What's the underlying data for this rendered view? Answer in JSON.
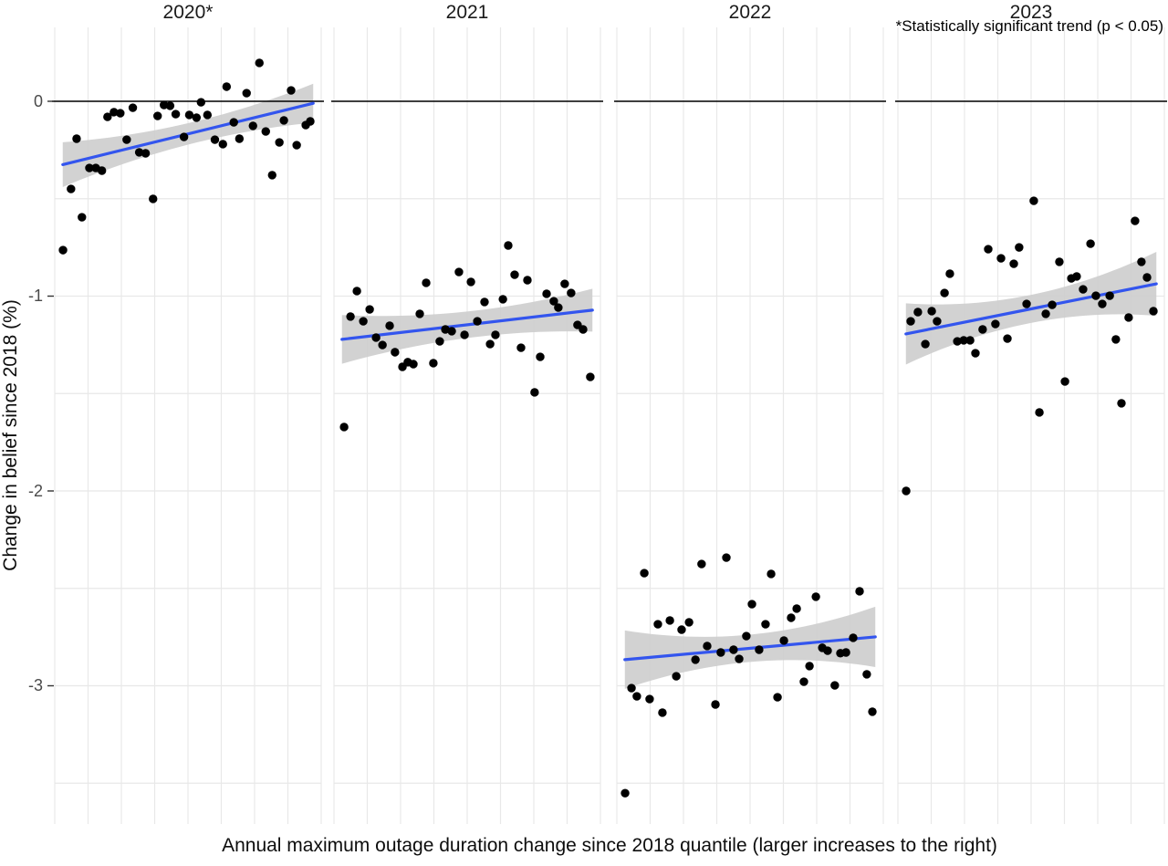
{
  "figure": {
    "background": "#FFFFFF"
  },
  "chart_data": {
    "type": "scatter",
    "xlabel": "Annual maximum outage duration change since 2018 quantile (larger increases to the right)",
    "ylabel": "Change in belief since 2018 (%)",
    "annotation": "*Statistically significant trend (p < 0.05)",
    "xlim": [
      0,
      1
    ],
    "ylim": [
      -3.71,
      0.38
    ],
    "y_ticks": [
      0,
      -1,
      -2,
      -3
    ],
    "y_tick_labels": [
      "0",
      "-1",
      "-2",
      "-3"
    ],
    "y_minor_step": 0.5,
    "grid": true,
    "zero_line": true,
    "legend": "none",
    "colors": {
      "point": "#000000",
      "trend": "#3355EE",
      "band": "#CDCDCD",
      "grid": "#E8E8E8",
      "zero_line": "#000000",
      "tick_mark": "#333333",
      "tick_text": "#4A4A4A"
    },
    "facets": [
      {
        "title": "2020*",
        "significant": true,
        "trend": {
          "x": [
            0.03,
            0.97
          ],
          "y": [
            -0.325,
            -0.01
          ]
        },
        "ci_halfwidth": {
          "left": 0.115,
          "mid": 0.055,
          "right": 0.1
        },
        "points": [
          [
            0.031,
            -0.764
          ],
          [
            0.061,
            -0.45
          ],
          [
            0.082,
            -0.192
          ],
          [
            0.102,
            -0.595
          ],
          [
            0.13,
            -0.342
          ],
          [
            0.154,
            -0.342
          ],
          [
            0.177,
            -0.356
          ],
          [
            0.198,
            -0.08
          ],
          [
            0.222,
            -0.056
          ],
          [
            0.246,
            -0.061
          ],
          [
            0.27,
            -0.197
          ],
          [
            0.293,
            -0.033
          ],
          [
            0.317,
            -0.262
          ],
          [
            0.341,
            -0.267
          ],
          [
            0.369,
            -0.501
          ],
          [
            0.386,
            -0.075
          ],
          [
            0.41,
            -0.019
          ],
          [
            0.433,
            -0.023
          ],
          [
            0.454,
            -0.066
          ],
          [
            0.485,
            -0.183
          ],
          [
            0.505,
            -0.07
          ],
          [
            0.532,
            -0.084
          ],
          [
            0.549,
            -0.005
          ],
          [
            0.573,
            -0.07
          ],
          [
            0.601,
            -0.197
          ],
          [
            0.631,
            -0.22
          ],
          [
            0.645,
            0.075
          ],
          [
            0.672,
            -0.108
          ],
          [
            0.693,
            -0.192
          ],
          [
            0.72,
            0.042
          ],
          [
            0.744,
            -0.126
          ],
          [
            0.768,
            0.197
          ],
          [
            0.792,
            -0.155
          ],
          [
            0.816,
            -0.379
          ],
          [
            0.843,
            -0.211
          ],
          [
            0.86,
            -0.098
          ],
          [
            0.887,
            0.056
          ],
          [
            0.908,
            -0.225
          ],
          [
            0.942,
            -0.122
          ],
          [
            0.959,
            -0.103
          ]
        ]
      },
      {
        "title": "2021",
        "significant": false,
        "trend": {
          "x": [
            0.03,
            0.97
          ],
          "y": [
            -1.222,
            -1.072
          ]
        },
        "ci_halfwidth": {
          "left": 0.125,
          "mid": 0.068,
          "right": 0.11
        },
        "points": [
          [
            0.038,
            -1.672
          ],
          [
            0.062,
            -1.105
          ],
          [
            0.086,
            -0.974
          ],
          [
            0.11,
            -1.129
          ],
          [
            0.134,
            -1.068
          ],
          [
            0.158,
            -1.213
          ],
          [
            0.182,
            -1.251
          ],
          [
            0.209,
            -1.152
          ],
          [
            0.229,
            -1.288
          ],
          [
            0.257,
            -1.363
          ],
          [
            0.277,
            -1.339
          ],
          [
            0.298,
            -1.349
          ],
          [
            0.322,
            -1.091
          ],
          [
            0.346,
            -0.932
          ],
          [
            0.373,
            -1.344
          ],
          [
            0.397,
            -1.232
          ],
          [
            0.418,
            -1.171
          ],
          [
            0.442,
            -1.18
          ],
          [
            0.469,
            -0.876
          ],
          [
            0.49,
            -1.199
          ],
          [
            0.514,
            -0.927
          ],
          [
            0.538,
            -1.129
          ],
          [
            0.565,
            -1.03
          ],
          [
            0.586,
            -1.246
          ],
          [
            0.606,
            -1.199
          ],
          [
            0.634,
            -1.016
          ],
          [
            0.654,
            -0.74
          ],
          [
            0.678,
            -0.89
          ],
          [
            0.702,
            -1.265
          ],
          [
            0.726,
            -0.918
          ],
          [
            0.753,
            -1.494
          ],
          [
            0.774,
            -1.312
          ],
          [
            0.798,
            -0.988
          ],
          [
            0.825,
            -1.026
          ],
          [
            0.842,
            -1.059
          ],
          [
            0.866,
            -0.937
          ],
          [
            0.89,
            -0.984
          ],
          [
            0.914,
            -1.148
          ],
          [
            0.935,
            -1.171
          ],
          [
            0.962,
            -1.415
          ]
        ]
      },
      {
        "title": "2022",
        "significant": false,
        "trend": {
          "x": [
            0.03,
            0.97
          ],
          "y": [
            -2.866,
            -2.749
          ]
        },
        "ci_halfwidth": {
          "left": 0.15,
          "mid": 0.07,
          "right": 0.155
        },
        "points": [
          [
            0.031,
            -3.551
          ],
          [
            0.055,
            -3.012
          ],
          [
            0.075,
            -3.054
          ],
          [
            0.103,
            -2.422
          ],
          [
            0.123,
            -3.068
          ],
          [
            0.154,
            -2.684
          ],
          [
            0.171,
            -3.138
          ],
          [
            0.199,
            -2.665
          ],
          [
            0.223,
            -2.951
          ],
          [
            0.243,
            -2.712
          ],
          [
            0.271,
            -2.674
          ],
          [
            0.295,
            -2.866
          ],
          [
            0.318,
            -2.375
          ],
          [
            0.339,
            -2.796
          ],
          [
            0.37,
            -3.096
          ],
          [
            0.39,
            -2.829
          ],
          [
            0.411,
            -2.342
          ],
          [
            0.438,
            -2.815
          ],
          [
            0.459,
            -2.862
          ],
          [
            0.486,
            -2.745
          ],
          [
            0.507,
            -2.581
          ],
          [
            0.534,
            -2.815
          ],
          [
            0.558,
            -2.684
          ],
          [
            0.579,
            -2.426
          ],
          [
            0.603,
            -3.059
          ],
          [
            0.627,
            -2.768
          ],
          [
            0.654,
            -2.651
          ],
          [
            0.675,
            -2.604
          ],
          [
            0.702,
            -2.979
          ],
          [
            0.723,
            -2.899
          ],
          [
            0.747,
            -2.543
          ],
          [
            0.771,
            -2.805
          ],
          [
            0.791,
            -2.82
          ],
          [
            0.818,
            -2.998
          ],
          [
            0.839,
            -2.833
          ],
          [
            0.86,
            -2.829
          ],
          [
            0.887,
            -2.754
          ],
          [
            0.911,
            -2.515
          ],
          [
            0.938,
            -2.941
          ],
          [
            0.959,
            -3.133
          ]
        ]
      },
      {
        "title": "2023",
        "significant": false,
        "trend": {
          "x": [
            0.03,
            0.97
          ],
          "y": [
            -1.194,
            -0.937
          ]
        },
        "ci_halfwidth": {
          "left": 0.157,
          "mid": 0.072,
          "right": 0.164
        },
        "points": [
          [
            0.031,
            -2.0
          ],
          [
            0.048,
            -1.129
          ],
          [
            0.075,
            -1.082
          ],
          [
            0.103,
            -1.246
          ],
          [
            0.127,
            -1.077
          ],
          [
            0.147,
            -1.129
          ],
          [
            0.175,
            -0.984
          ],
          [
            0.195,
            -0.885
          ],
          [
            0.223,
            -1.232
          ],
          [
            0.247,
            -1.227
          ],
          [
            0.271,
            -1.227
          ],
          [
            0.291,
            -1.293
          ],
          [
            0.318,
            -1.171
          ],
          [
            0.339,
            -0.759
          ],
          [
            0.366,
            -1.143
          ],
          [
            0.387,
            -0.806
          ],
          [
            0.411,
            -1.218
          ],
          [
            0.435,
            -0.834
          ],
          [
            0.455,
            -0.75
          ],
          [
            0.483,
            -1.04
          ],
          [
            0.51,
            -0.511
          ],
          [
            0.531,
            -1.597
          ],
          [
            0.555,
            -1.091
          ],
          [
            0.579,
            -1.045
          ],
          [
            0.606,
            -0.824
          ],
          [
            0.627,
            -1.438
          ],
          [
            0.651,
            -0.909
          ],
          [
            0.671,
            -0.899
          ],
          [
            0.695,
            -0.965
          ],
          [
            0.723,
            -0.731
          ],
          [
            0.743,
            -0.998
          ],
          [
            0.767,
            -1.04
          ],
          [
            0.795,
            -0.998
          ],
          [
            0.818,
            -1.222
          ],
          [
            0.839,
            -1.55
          ],
          [
            0.866,
            -1.11
          ],
          [
            0.89,
            -0.614
          ],
          [
            0.914,
            -0.824
          ],
          [
            0.935,
            -0.904
          ],
          [
            0.959,
            -1.077
          ]
        ]
      }
    ]
  }
}
